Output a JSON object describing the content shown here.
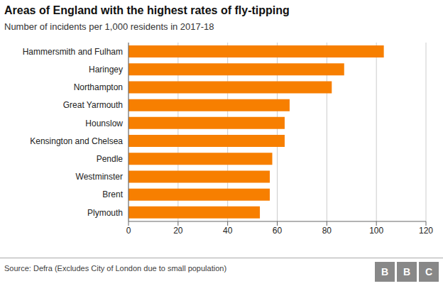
{
  "chart_data": {
    "type": "bar",
    "orientation": "horizontal",
    "title": "Areas of England with the highest rates of fly-tipping",
    "subtitle": "Number of incidents per 1,000 residents in 2017-18",
    "annotations": [
      "Source: Defra (Excludes City of London due to small population)",
      "BBC"
    ],
    "categories": [
      "Plymouth",
      "Brent",
      "Westminster",
      "Pendle",
      "Kensington and Chelsea",
      "Hounslow",
      "Great Yarmouth",
      "Northampton",
      "Haringey",
      "Hammersmith and Fulham"
    ],
    "values": [
      53,
      57,
      57,
      58,
      63,
      63,
      65,
      82,
      87,
      103
    ],
    "color": "#f77f00",
    "xlim": [
      0,
      120
    ],
    "xticks": [
      0,
      20,
      40,
      60,
      80,
      100,
      120
    ],
    "grid": true
  }
}
